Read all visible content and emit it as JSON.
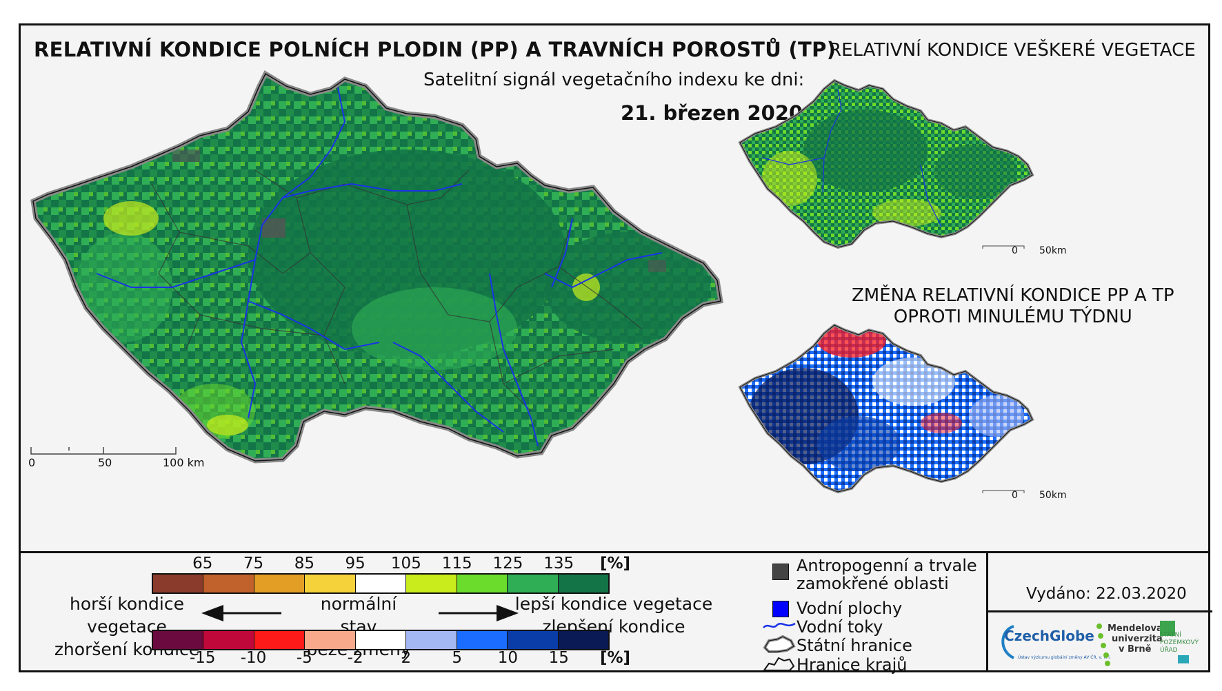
{
  "titles": {
    "main": "RELATIVNÍ KONDICE POLNÍCH PLODIN (PP) A TRAVNÍCH POROSTŮ (TP)",
    "subtitle": "Satelitní signál vegetačního indexu ke dni:",
    "date": "21. březen 2020",
    "vegetation": "RELATIVNÍ KONDICE VEŠKERÉ VEGETACE",
    "change_line1": "ZMĚNA RELATIVNÍ KONDICE PP A TP",
    "change_line2": "OPROTI MINULÉMU TÝDNU"
  },
  "scalebars": {
    "main": [
      "0",
      "50",
      "100 km"
    ],
    "small_top": [
      "0",
      "50km"
    ],
    "small_bottom": [
      "0",
      "50km"
    ]
  },
  "legend": {
    "condition_ticks": [
      "65",
      "75",
      "85",
      "95",
      "105",
      "115",
      "125",
      "135"
    ],
    "condition_unit": "[%]",
    "condition_colors": [
      "#8a3b2b",
      "#c1622c",
      "#e39e26",
      "#f6d23a",
      "#ffffff",
      "#c8ec1c",
      "#6bdc2c",
      "#2fae55",
      "#137447"
    ],
    "change_ticks": [
      "-15",
      "-10",
      "-5",
      "-2",
      "2",
      "5",
      "10",
      "15"
    ],
    "change_unit": "[%]",
    "change_colors": [
      "#6b0a3e",
      "#c0083a",
      "#ff1a1a",
      "#f9a98b",
      "#ffffff",
      "#a4b8f3",
      "#1a6dff",
      "#0a3da8",
      "#0a1a55"
    ],
    "worse_line1": "horší kondice vegetace",
    "worse_line2": "zhoršení kondice",
    "normal_line1": "normální stav",
    "normal_line2": "beze změny",
    "better_line1": "lepší kondice vegetace",
    "better_line2": "zlepšení kondice"
  },
  "key": {
    "anthropogenic_line1": "Antropogenní a trvale",
    "anthropogenic_line2": "zamokřené oblasti",
    "water_bodies": "Vodní plochy",
    "water_flows": "Vodní toky",
    "state_border": "Státní hranice",
    "region_border": "Hranice krajů"
  },
  "issued": "Vydáno: 22.03.2020",
  "logos": {
    "czechglobe": "CzechGlobe",
    "czechglobe_sub": "Ústav výzkumu globální změny AV ČR, v. v. i.",
    "mendel_line1": "Mendelova",
    "mendel_line2": "univerzita",
    "mendel_line3": "v Brně",
    "spu_line1": "STÁTNÍ",
    "spu_line2": "POZEMKOVÝ",
    "spu_line3": "ÚŘAD"
  },
  "colors": {
    "map_dark_green": "#137447",
    "map_green": "#2fae55",
    "map_light_green": "#6bdc2c",
    "map_yellow_green": "#c8ec1c",
    "river_blue": "#1a33e6",
    "anthropogenic": "#444444",
    "water_body": "#0000ff"
  }
}
